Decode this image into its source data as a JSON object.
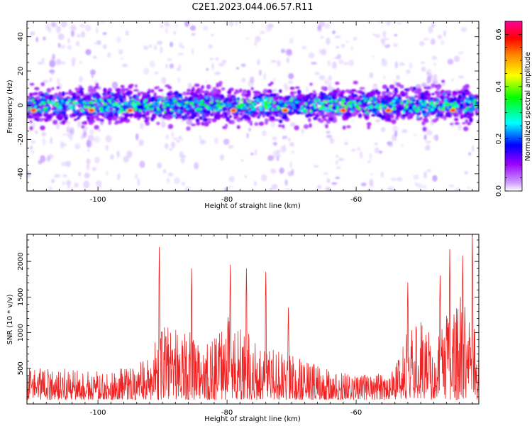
{
  "title": "C2E1.2023.044.06.57.R11",
  "chart_data": [
    {
      "type": "heatmap",
      "name": "spectrogram",
      "xlabel": "Height of straight line (km)",
      "ylabel": "Frequency (Hz)",
      "xlim": [
        -111,
        -41
      ],
      "ylim": [
        -50,
        49
      ],
      "xticks": [
        -100,
        -80,
        -60
      ],
      "yticks": [
        -40,
        -20,
        0,
        20,
        40
      ],
      "band": {
        "center_hz": 0,
        "half_width_hz": 10
      },
      "hot_spots_x": [
        -110,
        -101,
        -95,
        -79,
        -71,
        -62,
        -55,
        -45
      ],
      "vertical_streak_x": [
        -105.5,
        -101.5,
        -88.5,
        -71.5,
        -64,
        -55.5,
        -49
      ],
      "colorbar": {
        "label": "Normalized spectral amplitude",
        "range": [
          0.0,
          0.65
        ],
        "ticks": [
          0.0,
          0.2,
          0.4,
          0.6
        ],
        "colors": [
          "#ffffff",
          "#cc99ff",
          "#9900ff",
          "#0000ff",
          "#00ffff",
          "#00ff00",
          "#ffff00",
          "#ff8800",
          "#ff0000",
          "#ff0099"
        ]
      }
    },
    {
      "type": "line",
      "name": "snr",
      "xlabel": "Height of straight line (km)",
      "ylabel": "SNR (10 * v/v)",
      "xlim": [
        -111,
        -41
      ],
      "ylim": [
        0,
        2380
      ],
      "xticks": [
        -100,
        -80,
        -60
      ],
      "yticks": [
        500,
        1000,
        1500,
        2000
      ],
      "color": "#ee2222",
      "envelope": {
        "x": [
          -111,
          -105,
          -100,
          -96,
          -92,
          -90,
          -88,
          -85,
          -82,
          -80,
          -78,
          -75,
          -72,
          -69,
          -66,
          -63,
          -60,
          -57,
          -54,
          -52,
          -50,
          -48,
          -46,
          -44,
          -42,
          -41
        ],
        "y": [
          500,
          500,
          460,
          500,
          700,
          1100,
          1050,
          1000,
          900,
          1250,
          1100,
          850,
          750,
          650,
          550,
          450,
          400,
          420,
          500,
          1050,
          1200,
          900,
          1250,
          1600,
          1150,
          1000
        ]
      },
      "peaks": [
        [
          -90.5,
          2200
        ],
        [
          -85.5,
          1900
        ],
        [
          -79.5,
          1950
        ],
        [
          -77,
          1900
        ],
        [
          -74,
          1850
        ],
        [
          -70.5,
          1350
        ],
        [
          -52,
          1700
        ],
        [
          -47,
          1800
        ],
        [
          -45.5,
          2170
        ],
        [
          -43.5,
          2080
        ],
        [
          -42,
          2380
        ]
      ]
    }
  ]
}
